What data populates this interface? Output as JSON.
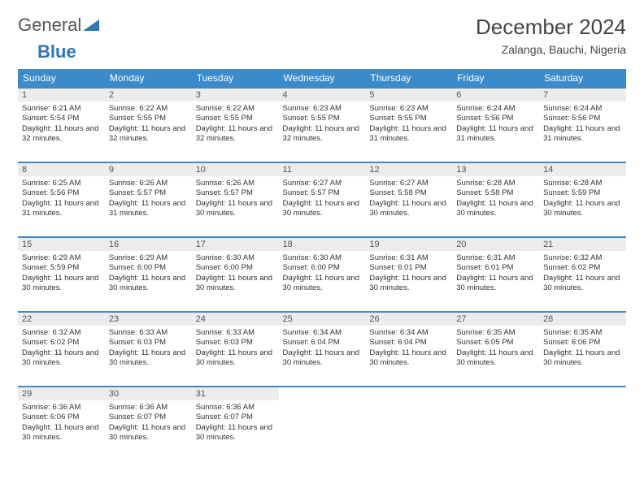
{
  "logo": {
    "text_general": "General",
    "text_blue": "Blue"
  },
  "header": {
    "month_title": "December 2024",
    "location": "Zalanga, Bauchi, Nigeria"
  },
  "colors": {
    "header_bg": "#3b8aca",
    "header_text": "#ffffff",
    "rule": "#3b8aca",
    "daynum_bg": "#ececec",
    "text": "#333333"
  },
  "calendar": {
    "type": "table",
    "columns": [
      "Sunday",
      "Monday",
      "Tuesday",
      "Wednesday",
      "Thursday",
      "Friday",
      "Saturday"
    ],
    "first_weekday_index": 0,
    "days": [
      {
        "n": 1,
        "sunrise": "6:21 AM",
        "sunset": "5:54 PM",
        "daylight": "11 hours and 32 minutes."
      },
      {
        "n": 2,
        "sunrise": "6:22 AM",
        "sunset": "5:55 PM",
        "daylight": "11 hours and 32 minutes."
      },
      {
        "n": 3,
        "sunrise": "6:22 AM",
        "sunset": "5:55 PM",
        "daylight": "11 hours and 32 minutes."
      },
      {
        "n": 4,
        "sunrise": "6:23 AM",
        "sunset": "5:55 PM",
        "daylight": "11 hours and 32 minutes."
      },
      {
        "n": 5,
        "sunrise": "6:23 AM",
        "sunset": "5:55 PM",
        "daylight": "11 hours and 31 minutes."
      },
      {
        "n": 6,
        "sunrise": "6:24 AM",
        "sunset": "5:56 PM",
        "daylight": "11 hours and 31 minutes."
      },
      {
        "n": 7,
        "sunrise": "6:24 AM",
        "sunset": "5:56 PM",
        "daylight": "11 hours and 31 minutes."
      },
      {
        "n": 8,
        "sunrise": "6:25 AM",
        "sunset": "5:56 PM",
        "daylight": "11 hours and 31 minutes."
      },
      {
        "n": 9,
        "sunrise": "6:26 AM",
        "sunset": "5:57 PM",
        "daylight": "11 hours and 31 minutes."
      },
      {
        "n": 10,
        "sunrise": "6:26 AM",
        "sunset": "5:57 PM",
        "daylight": "11 hours and 30 minutes."
      },
      {
        "n": 11,
        "sunrise": "6:27 AM",
        "sunset": "5:57 PM",
        "daylight": "11 hours and 30 minutes."
      },
      {
        "n": 12,
        "sunrise": "6:27 AM",
        "sunset": "5:58 PM",
        "daylight": "11 hours and 30 minutes."
      },
      {
        "n": 13,
        "sunrise": "6:28 AM",
        "sunset": "5:58 PM",
        "daylight": "11 hours and 30 minutes."
      },
      {
        "n": 14,
        "sunrise": "6:28 AM",
        "sunset": "5:59 PM",
        "daylight": "11 hours and 30 minutes."
      },
      {
        "n": 15,
        "sunrise": "6:29 AM",
        "sunset": "5:59 PM",
        "daylight": "11 hours and 30 minutes."
      },
      {
        "n": 16,
        "sunrise": "6:29 AM",
        "sunset": "6:00 PM",
        "daylight": "11 hours and 30 minutes."
      },
      {
        "n": 17,
        "sunrise": "6:30 AM",
        "sunset": "6:00 PM",
        "daylight": "11 hours and 30 minutes."
      },
      {
        "n": 18,
        "sunrise": "6:30 AM",
        "sunset": "6:00 PM",
        "daylight": "11 hours and 30 minutes."
      },
      {
        "n": 19,
        "sunrise": "6:31 AM",
        "sunset": "6:01 PM",
        "daylight": "11 hours and 30 minutes."
      },
      {
        "n": 20,
        "sunrise": "6:31 AM",
        "sunset": "6:01 PM",
        "daylight": "11 hours and 30 minutes."
      },
      {
        "n": 21,
        "sunrise": "6:32 AM",
        "sunset": "6:02 PM",
        "daylight": "11 hours and 30 minutes."
      },
      {
        "n": 22,
        "sunrise": "6:32 AM",
        "sunset": "6:02 PM",
        "daylight": "11 hours and 30 minutes."
      },
      {
        "n": 23,
        "sunrise": "6:33 AM",
        "sunset": "6:03 PM",
        "daylight": "11 hours and 30 minutes."
      },
      {
        "n": 24,
        "sunrise": "6:33 AM",
        "sunset": "6:03 PM",
        "daylight": "11 hours and 30 minutes."
      },
      {
        "n": 25,
        "sunrise": "6:34 AM",
        "sunset": "6:04 PM",
        "daylight": "11 hours and 30 minutes."
      },
      {
        "n": 26,
        "sunrise": "6:34 AM",
        "sunset": "6:04 PM",
        "daylight": "11 hours and 30 minutes."
      },
      {
        "n": 27,
        "sunrise": "6:35 AM",
        "sunset": "6:05 PM",
        "daylight": "11 hours and 30 minutes."
      },
      {
        "n": 28,
        "sunrise": "6:35 AM",
        "sunset": "6:06 PM",
        "daylight": "11 hours and 30 minutes."
      },
      {
        "n": 29,
        "sunrise": "6:36 AM",
        "sunset": "6:06 PM",
        "daylight": "11 hours and 30 minutes."
      },
      {
        "n": 30,
        "sunrise": "6:36 AM",
        "sunset": "6:07 PM",
        "daylight": "11 hours and 30 minutes."
      },
      {
        "n": 31,
        "sunrise": "6:36 AM",
        "sunset": "6:07 PM",
        "daylight": "11 hours and 30 minutes."
      }
    ],
    "labels": {
      "sunrise_prefix": "Sunrise: ",
      "sunset_prefix": "Sunset: ",
      "daylight_prefix": "Daylight: "
    }
  }
}
